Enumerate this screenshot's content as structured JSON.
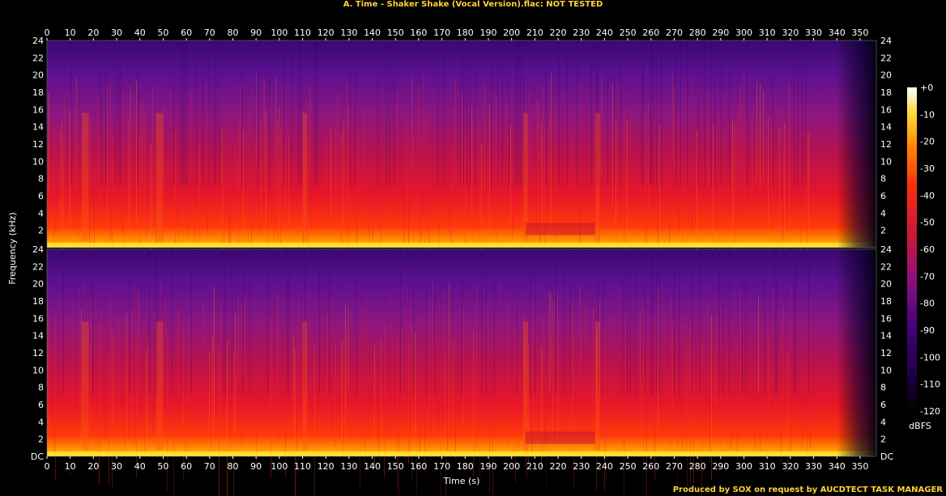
{
  "page": {
    "title": "A. Time - Shaker Shake (Vocal Version).flac: NOT TESTED",
    "footer": "Produced by SOX on request by AUCDTECT TASK MANAGER"
  },
  "chart_data": {
    "type": "heatmap",
    "title": "A. Time - Shaker Shake (Vocal Version).flac: NOT TESTED",
    "xlabel": "Time (s)",
    "ylabel": "Frequency (kHz)",
    "xlim": [
      0,
      357
    ],
    "ylim": [
      0,
      24
    ],
    "x_ticks": [
      0,
      10,
      20,
      30,
      40,
      50,
      60,
      70,
      80,
      90,
      100,
      110,
      120,
      130,
      140,
      150,
      160,
      170,
      180,
      190,
      200,
      210,
      220,
      230,
      240,
      250,
      260,
      270,
      280,
      290,
      300,
      310,
      320,
      330,
      340,
      350
    ],
    "y_ticks": [
      2,
      4,
      6,
      8,
      10,
      12,
      14,
      16,
      18,
      20,
      22,
      24
    ],
    "y_zero_label": "DC",
    "channels": 2,
    "colorbar": {
      "label": "dBFS",
      "ticks": [
        "+0",
        "-10",
        "-20",
        "-30",
        "-40",
        "-50",
        "-60",
        "-70",
        "-80",
        "-90",
        "-100",
        "-110",
        "-120"
      ],
      "colors": [
        "#000000",
        "#1a0030",
        "#3a0070",
        "#5a0a90",
        "#8a1a8a",
        "#b81a60",
        "#e01830",
        "#ff2a10",
        "#ff6a00",
        "#ffa800",
        "#ffe040",
        "#ffffc0",
        "#ffffff"
      ]
    },
    "bright_regions_s": [
      [
        15,
        18
      ],
      [
        47,
        50
      ],
      [
        110,
        112
      ],
      [
        205,
        207
      ],
      [
        236,
        238
      ]
    ],
    "low_energy_segment_s": [
      206,
      236
    ],
    "fade_out_s": [
      340,
      357
    ]
  }
}
